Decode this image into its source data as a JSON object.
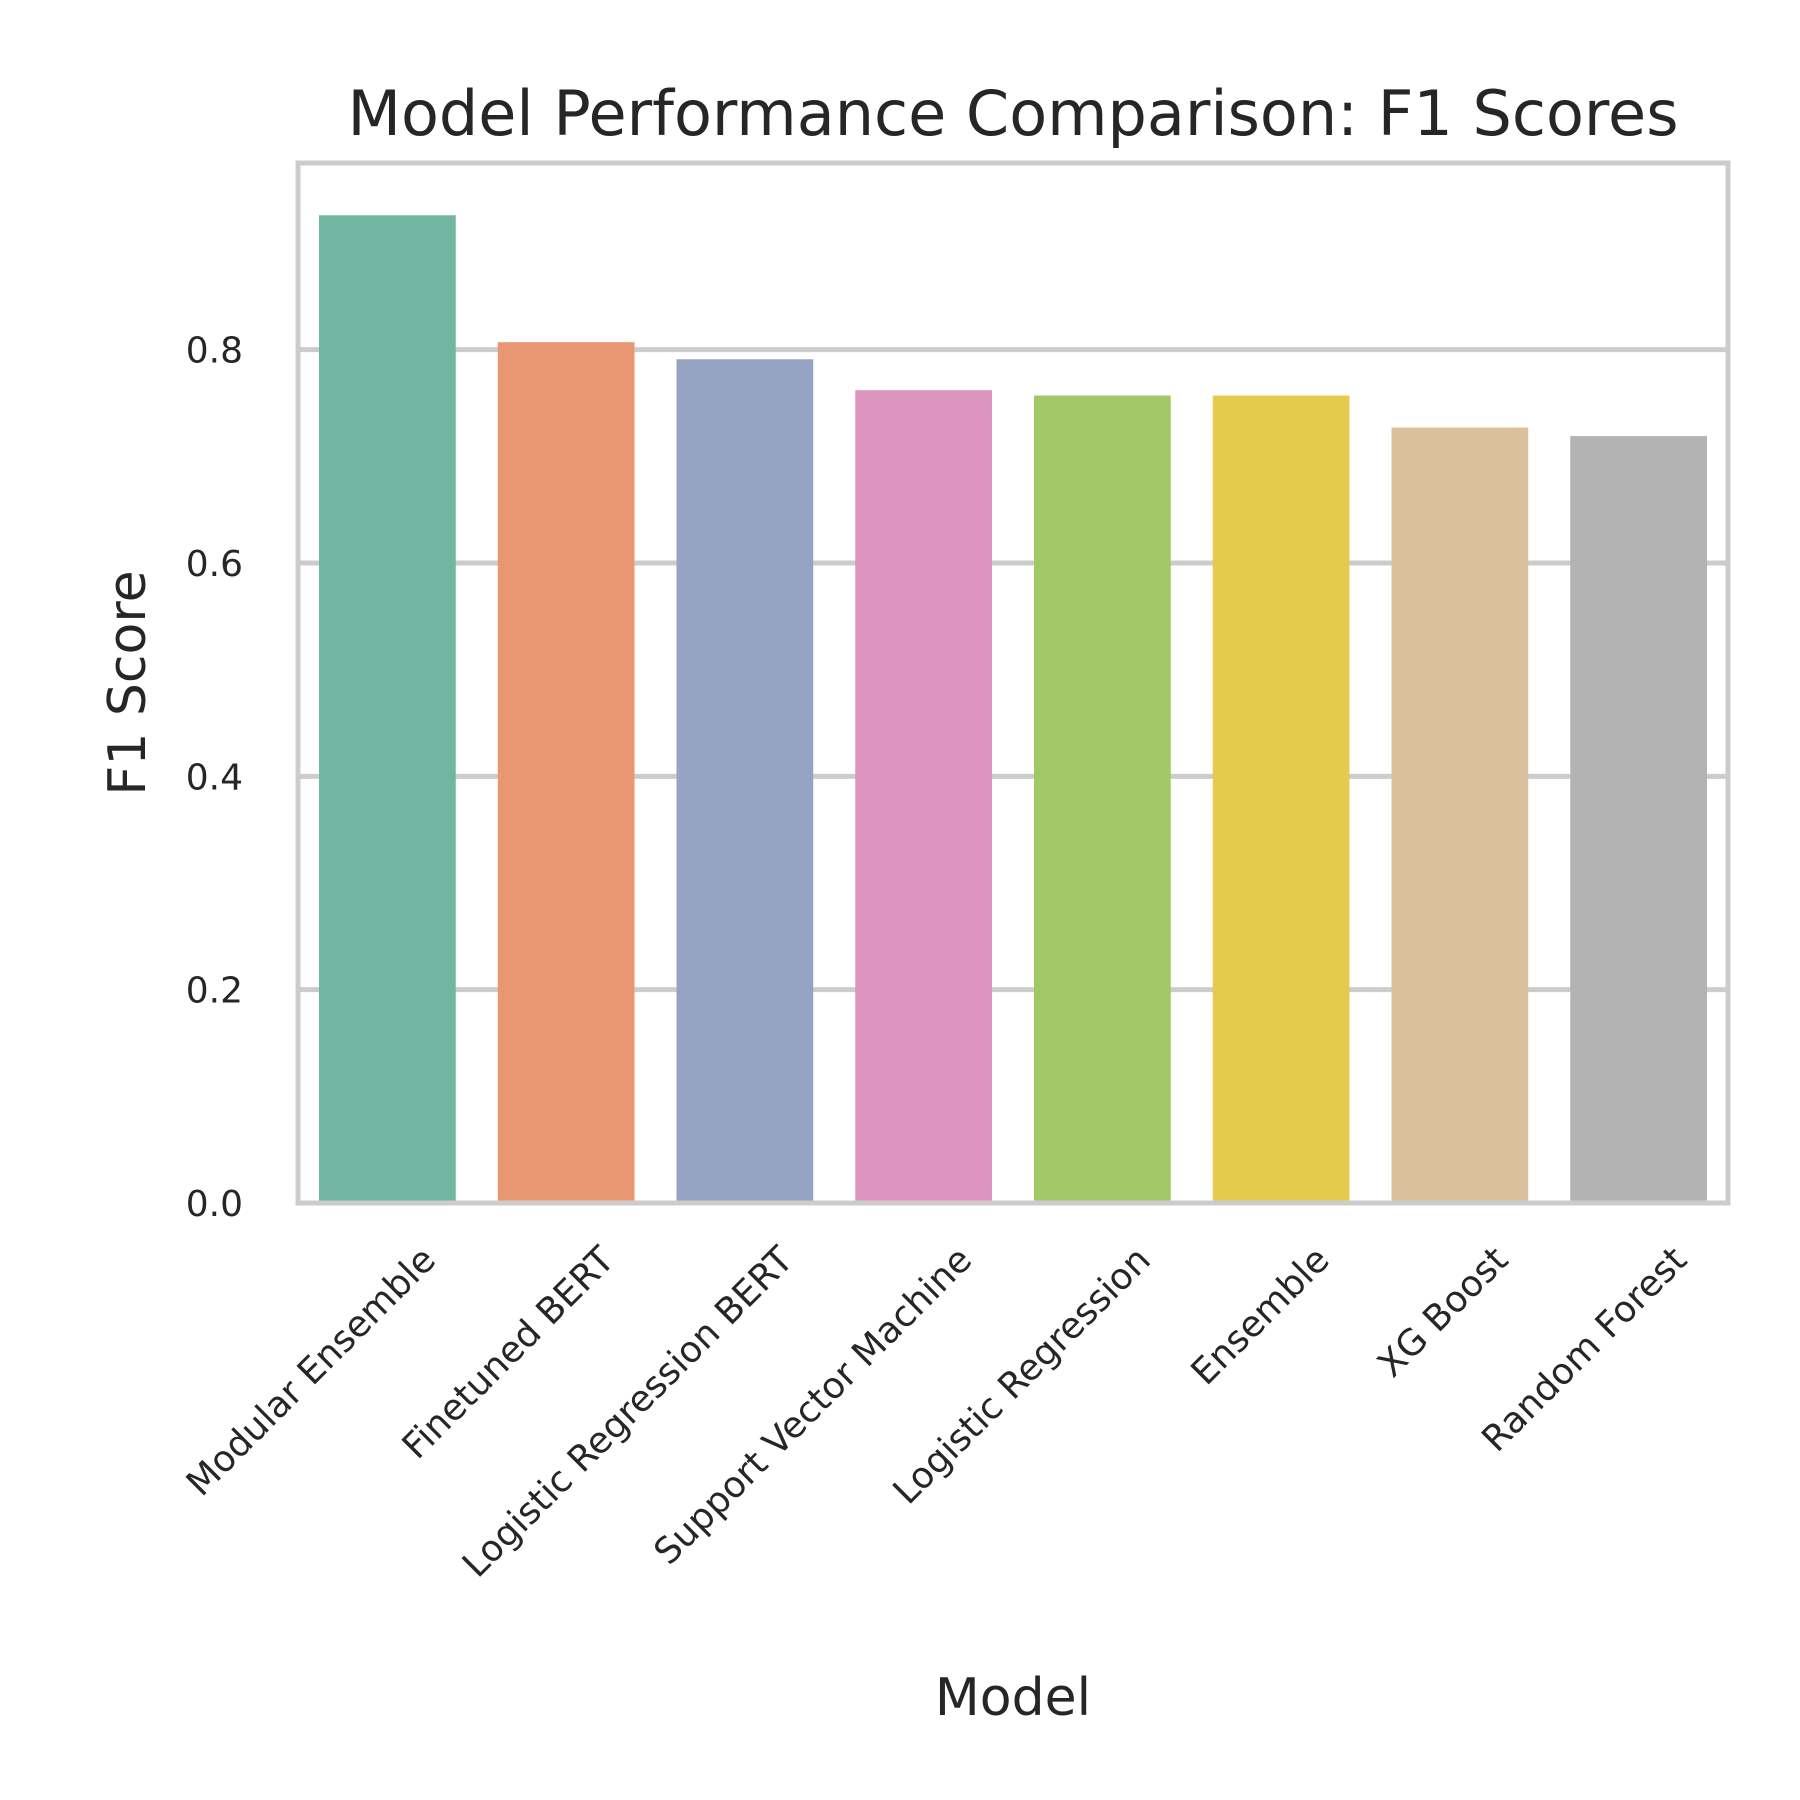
{
  "chart_data": {
    "type": "bar",
    "title": "Model Performance Comparison: F1 Scores",
    "xlabel": "Model",
    "ylabel": "F1 Score",
    "categories": [
      "Modular Ensemble",
      "Finetuned BERT",
      "Logistic Regression BERT",
      "Support Vector Machine",
      "Logistic Regression",
      "Ensemble",
      "XG Boost",
      "Random Forest"
    ],
    "values": [
      0.926,
      0.807,
      0.791,
      0.762,
      0.757,
      0.757,
      0.727,
      0.719
    ],
    "colors": [
      "#72b5a0",
      "#e99672",
      "#95a4c3",
      "#dc95bf",
      "#a2c866",
      "#e4cb4c",
      "#dac19c",
      "#b3b3b3"
    ],
    "ylim": [
      0,
      0.975
    ],
    "yticks": [
      0.0,
      0.2,
      0.4,
      0.6,
      0.8
    ],
    "ytick_labels": [
      "0.0",
      "0.2",
      "0.4",
      "0.6",
      "0.8"
    ],
    "grid": true,
    "legend": "none"
  },
  "style": {
    "grid_color": "#cccccc",
    "frame_color": "#cccccc",
    "text_color": "#262626",
    "background": "#ffffff"
  }
}
